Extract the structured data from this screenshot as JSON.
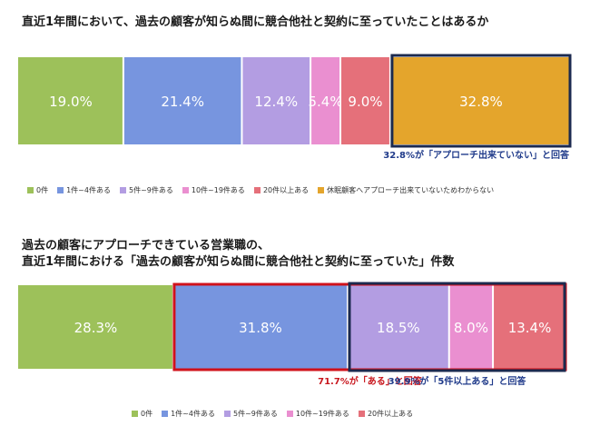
{
  "chart_data": [
    {
      "type": "bar",
      "stacked": true,
      "orientation": "horizontal",
      "title": "直近1年間において、過去の顧客が知らぬ間に競合他社と契約に至っていたことはあるか",
      "series": [
        {
          "name": "0件",
          "value": 19.0,
          "label": "19.0%",
          "color": "#9dc15a"
        },
        {
          "name": "1件~4件ある",
          "value": 21.4,
          "label": "21.4%",
          "color": "#7795df"
        },
        {
          "name": "5件~9件ある",
          "value": 12.4,
          "label": "12.4%",
          "color": "#b39de2"
        },
        {
          "name": "10件~19件ある",
          "value": 5.4,
          "label": "5.4%",
          "color": "#ea8fd0"
        },
        {
          "name": "20件以上ある",
          "value": 9.0,
          "label": "9.0%",
          "color": "#e5707a"
        },
        {
          "name": "休眠顧客へアプローチ出来ていないためわからない",
          "value": 32.8,
          "label": "32.8%",
          "color": "#e4a52c"
        }
      ],
      "annotations": [
        {
          "text": "32.8%が「アプローチ出来ていない」と回答",
          "color": "#1f3a8a",
          "highlight_series": [
            5
          ],
          "box_color": "#1c2a4f"
        }
      ],
      "xlim": [
        0,
        100
      ],
      "legend_position": "bottom"
    },
    {
      "type": "bar",
      "stacked": true,
      "orientation": "horizontal",
      "title_lines": [
        "過去の顧客にアプローチできている営業職の、",
        "直近1年間における「過去の顧客が知らぬ間に競合他社と契約に至っていた」件数"
      ],
      "series": [
        {
          "name": "0件",
          "value": 28.3,
          "label": "28.3%",
          "color": "#9dc15a"
        },
        {
          "name": "1件~4件ある",
          "value": 31.8,
          "label": "31.8%",
          "color": "#7795df"
        },
        {
          "name": "5件~9件ある",
          "value": 18.5,
          "label": "18.5%",
          "color": "#b39de2"
        },
        {
          "name": "10件~19件ある",
          "value": 8.0,
          "label": "8.0%",
          "color": "#ea8fd0"
        },
        {
          "name": "20件以上ある",
          "value": 13.4,
          "label": "13.4%",
          "color": "#e5707a"
        }
      ],
      "annotations": [
        {
          "text": "71.7%が「ある」と回答",
          "color": "#c8161d",
          "highlight_series": [
            1,
            2,
            3,
            4
          ],
          "box_color": "#d0121b"
        },
        {
          "text": "39.9%が「5件以上ある」と回答",
          "color": "#1f3a8a",
          "highlight_series": [
            2,
            3,
            4
          ],
          "box_color": "#1c2a4f"
        }
      ],
      "xlim": [
        0,
        100
      ],
      "legend_position": "bottom"
    }
  ]
}
